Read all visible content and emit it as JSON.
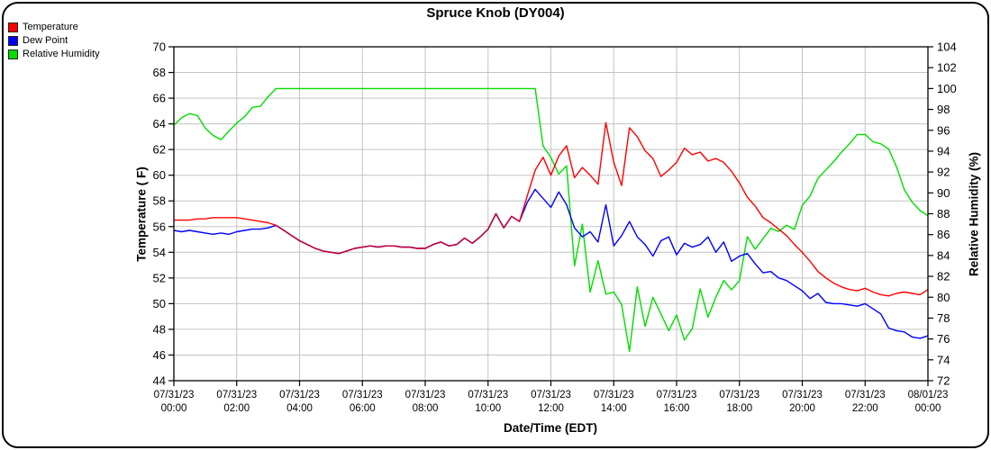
{
  "title": "Spruce Knob (DY004)",
  "legend": {
    "items": [
      {
        "label": "Temperature",
        "color": "#ff0000"
      },
      {
        "label": "Dew Point",
        "color": "#0000ff"
      },
      {
        "label": "Relative Humidity",
        "color": "#00dd00"
      }
    ]
  },
  "chart_data": {
    "type": "line",
    "title": "Spruce Knob (DY004)",
    "xlabel": "Date/Time (EDT)",
    "ylabel_left": "Temperature ( F)",
    "ylabel_right": "Relative Humidity (%)",
    "grid": true,
    "legend_position": "top-left",
    "y_left": {
      "min": 44,
      "max": 70,
      "step": 2
    },
    "y_right": {
      "min": 72,
      "max": 104,
      "step": 2
    },
    "x_hours_start": 0,
    "x_hours_end": 24,
    "x_step_hours": 0.25,
    "x_ticks": [
      {
        "hour": 0,
        "date": "07/31/23",
        "time": "00:00"
      },
      {
        "hour": 2,
        "date": "07/31/23",
        "time": "02:00"
      },
      {
        "hour": 4,
        "date": "07/31/23",
        "time": "04:00"
      },
      {
        "hour": 6,
        "date": "07/31/23",
        "time": "06:00"
      },
      {
        "hour": 8,
        "date": "07/31/23",
        "time": "08:00"
      },
      {
        "hour": 10,
        "date": "07/31/23",
        "time": "10:00"
      },
      {
        "hour": 12,
        "date": "07/31/23",
        "time": "12:00"
      },
      {
        "hour": 14,
        "date": "07/31/23",
        "time": "14:00"
      },
      {
        "hour": 16,
        "date": "07/31/23",
        "time": "16:00"
      },
      {
        "hour": 18,
        "date": "07/31/23",
        "time": "18:00"
      },
      {
        "hour": 20,
        "date": "07/31/23",
        "time": "20:00"
      },
      {
        "hour": 22,
        "date": "07/31/23",
        "time": "22:00"
      },
      {
        "hour": 24,
        "date": "08/01/23",
        "time": "00:00"
      }
    ],
    "overlap_color": "#bb0045",
    "grid_color": "#c3c3c3",
    "series": [
      {
        "name": "Temperature",
        "axis": "left",
        "color": "#ff0000",
        "values": [
          56.5,
          56.5,
          56.5,
          56.6,
          56.6,
          56.7,
          56.7,
          56.7,
          56.7,
          56.6,
          56.5,
          56.4,
          56.3,
          56.1,
          55.7,
          55.3,
          54.9,
          54.6,
          54.3,
          54.1,
          54.0,
          53.9,
          54.1,
          54.3,
          54.4,
          54.5,
          54.4,
          54.5,
          54.5,
          54.4,
          54.4,
          54.3,
          54.3,
          54.6,
          54.8,
          54.5,
          54.6,
          55.1,
          54.7,
          55.2,
          55.8,
          57.0,
          55.9,
          56.8,
          56.4,
          58.4,
          60.4,
          61.4,
          60.0,
          61.5,
          62.3,
          59.8,
          60.6,
          60.0,
          59.3,
          64.1,
          61.0,
          59.2,
          63.7,
          63.0,
          61.9,
          61.3,
          59.9,
          60.4,
          61.0,
          62.1,
          61.6,
          61.8,
          61.1,
          61.3,
          61.0,
          60.3,
          59.4,
          58.3,
          57.6,
          56.7,
          56.3,
          55.8,
          55.3,
          54.6,
          54.0,
          53.3,
          52.5,
          52.0,
          51.6,
          51.3,
          51.1,
          51.0,
          51.2,
          50.9,
          50.7,
          50.6,
          50.8,
          50.9,
          50.8,
          50.7,
          51.1
        ]
      },
      {
        "name": "Dew Point",
        "axis": "left",
        "color": "#0000ff",
        "values": [
          55.7,
          55.6,
          55.7,
          55.6,
          55.5,
          55.4,
          55.5,
          55.4,
          55.6,
          55.7,
          55.8,
          55.8,
          55.9,
          56.1,
          55.7,
          55.3,
          54.9,
          54.6,
          54.3,
          54.1,
          54.0,
          53.9,
          54.1,
          54.3,
          54.4,
          54.5,
          54.4,
          54.5,
          54.5,
          54.4,
          54.4,
          54.3,
          54.3,
          54.6,
          54.8,
          54.5,
          54.6,
          55.1,
          54.7,
          55.2,
          55.8,
          57.0,
          55.9,
          56.8,
          56.4,
          57.9,
          58.9,
          58.2,
          57.5,
          58.7,
          57.7,
          55.9,
          55.2,
          55.6,
          54.8,
          57.7,
          54.5,
          55.3,
          56.4,
          55.2,
          54.6,
          53.7,
          54.9,
          55.2,
          53.8,
          54.7,
          54.4,
          54.6,
          55.2,
          54.0,
          54.8,
          53.3,
          53.7,
          53.9,
          53.1,
          52.4,
          52.5,
          52.0,
          51.8,
          51.4,
          51.0,
          50.4,
          50.8,
          50.1,
          50.0,
          50.0,
          49.9,
          49.8,
          50.0,
          49.6,
          49.2,
          48.1,
          47.9,
          47.8,
          47.4,
          47.3,
          47.5
        ]
      },
      {
        "name": "Relative Humidity",
        "axis": "right",
        "color": "#00dd00",
        "values": [
          96.5,
          97.2,
          97.6,
          97.4,
          96.2,
          95.5,
          95.1,
          95.9,
          96.7,
          97.3,
          98.2,
          98.3,
          99.2,
          100,
          100,
          100,
          100,
          100,
          100,
          100,
          100,
          100,
          100,
          100,
          100,
          100,
          100,
          100,
          100,
          100,
          100,
          100,
          100,
          100,
          100,
          100,
          100,
          100,
          100,
          100,
          100,
          100,
          100,
          100,
          100,
          100,
          100,
          94.5,
          93.4,
          91.8,
          92.6,
          83.0,
          87.0,
          80.5,
          83.5,
          80.3,
          80.5,
          79.3,
          74.8,
          81.0,
          77.2,
          80.0,
          78.4,
          76.8,
          78.3,
          75.9,
          77.0,
          80.8,
          78.1,
          80.0,
          81.6,
          80.7,
          81.6,
          85.8,
          84.6,
          85.6,
          86.6,
          86.3,
          86.9,
          86.5,
          88.8,
          89.7,
          91.4,
          92.2,
          93.0,
          93.9,
          94.7,
          95.6,
          95.6,
          94.9,
          94.7,
          94.2,
          92.5,
          90.3,
          89.1,
          88.3,
          87.8
        ]
      }
    ]
  }
}
